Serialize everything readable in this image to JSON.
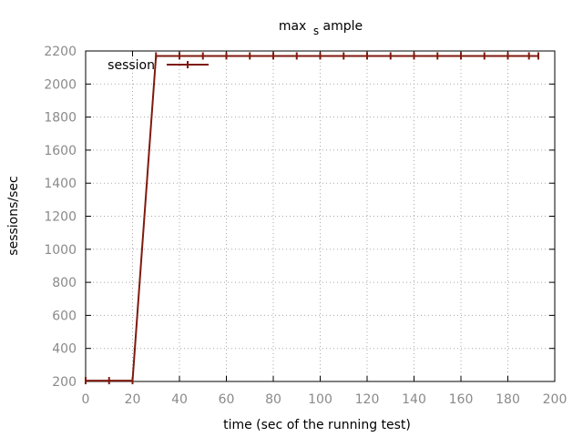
{
  "chart_data": {
    "type": "line",
    "title_main": "max",
    "title_sub": "s",
    "title_rest": "ample",
    "xlabel": "time (sec of the running test)",
    "ylabel": "sessions/sec",
    "xlim": [
      0,
      200
    ],
    "ylim": [
      200,
      2200
    ],
    "xticks": [
      0,
      20,
      40,
      60,
      80,
      100,
      120,
      140,
      160,
      180,
      200
    ],
    "yticks": [
      200,
      400,
      600,
      800,
      1000,
      1200,
      1400,
      1600,
      1800,
      2000,
      2200
    ],
    "grid": true,
    "legend_position": "top-left",
    "series": [
      {
        "name": "session",
        "color": "#7f1a0e",
        "marker": "vertical-tick",
        "x": [
          0,
          10,
          20,
          30,
          40,
          50,
          60,
          70,
          80,
          90,
          100,
          110,
          120,
          130,
          140,
          150,
          160,
          170,
          180,
          189,
          193
        ],
        "y": [
          205,
          205,
          205,
          2170,
          2170,
          2170,
          2170,
          2170,
          2170,
          2170,
          2170,
          2170,
          2170,
          2170,
          2170,
          2170,
          2170,
          2170,
          2170,
          2170,
          2170
        ]
      }
    ]
  }
}
